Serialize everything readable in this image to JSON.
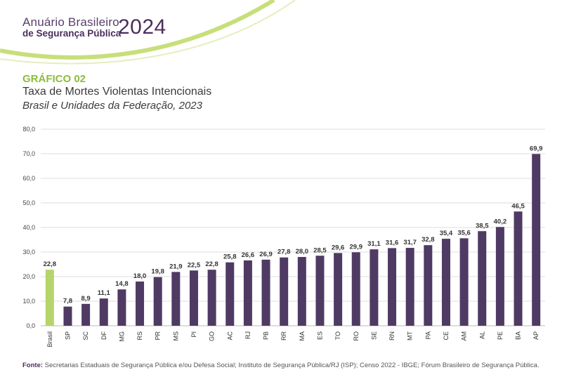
{
  "header": {
    "brand_line1": "Anuário Brasileiro",
    "brand_line2": "de Segurança Pública",
    "year": "2024"
  },
  "chart_heading": {
    "label": "GRÁFICO 02",
    "title": "Taxa de Mortes Violentas Intencionais",
    "subtitle": "Brasil e Unidades da Federação, 2023"
  },
  "source": {
    "label": "Fonte:",
    "text": "Secretarias Estaduais de Segurança Pública e/ou Defesa Social; Instituto de Segurança Pública/RJ (ISP); Censo 2022 - IBGE; Fórum Brasileiro de Segurança Pública."
  },
  "colors": {
    "highlight": "#b5d56a",
    "bar": "#4f3a64",
    "grid": "#dddddd",
    "accent_green": "#c7df7a"
  },
  "chart_data": {
    "type": "bar",
    "title": "Taxa de Mortes Violentas Intencionais",
    "subtitle": "Brasil e Unidades da Federação, 2023",
    "xlabel": "",
    "ylabel": "",
    "ylim": [
      0,
      80
    ],
    "yticks": [
      "0,0",
      "10,0",
      "20,0",
      "30,0",
      "40,0",
      "50,0",
      "60,0",
      "70,0",
      "80,0"
    ],
    "grid": true,
    "highlight_category": "Brasil",
    "categories": [
      "Brasil",
      "SP",
      "SC",
      "DF",
      "MG",
      "RS",
      "PR",
      "MS",
      "PI",
      "GO",
      "AC",
      "RJ",
      "PB",
      "RR",
      "MA",
      "ES",
      "TO",
      "RO",
      "SE",
      "RN",
      "MT",
      "PA",
      "CE",
      "AM",
      "AL",
      "PE",
      "BA",
      "AP"
    ],
    "values": [
      22.8,
      7.8,
      8.9,
      11.1,
      14.8,
      18.0,
      19.8,
      21.9,
      22.5,
      22.8,
      25.8,
      26.6,
      26.9,
      27.8,
      28.0,
      28.5,
      29.6,
      29.9,
      31.1,
      31.6,
      31.7,
      32.8,
      35.4,
      35.6,
      38.5,
      40.2,
      46.5,
      69.9
    ],
    "value_labels": [
      "22,8",
      "7,8",
      "8,9",
      "11,1",
      "14,8",
      "18,0",
      "19,8",
      "21,9",
      "22,5",
      "22,8",
      "25,8",
      "26,6",
      "26,9",
      "27,8",
      "28,0",
      "28,5",
      "29,6",
      "29,9",
      "31,1",
      "31,6",
      "31,7",
      "32,8",
      "35,4",
      "35,6",
      "38,5",
      "40,2",
      "46,5",
      "69,9"
    ]
  }
}
